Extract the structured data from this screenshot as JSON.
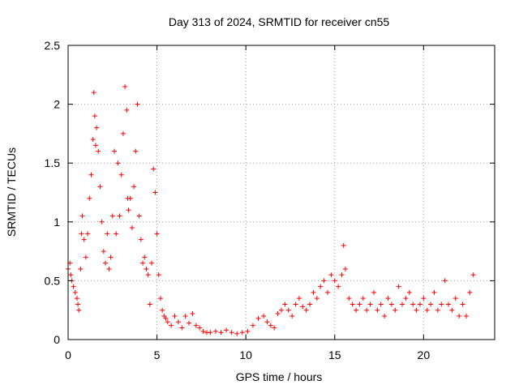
{
  "chart_data": {
    "type": "scatter",
    "title": "Day 313 of 2024, SRMTID for receiver cn55",
    "xlabel": "GPS time / hours",
    "ylabel": "SRMTID / TECUs",
    "xlim": [
      0,
      24
    ],
    "ylim": [
      0,
      2.5
    ],
    "xticks": [
      0,
      5,
      10,
      15,
      20
    ],
    "yticks": [
      0,
      0.5,
      1,
      1.5,
      2,
      2.5
    ],
    "xtick_labels": [
      "0",
      "5",
      "10",
      "15",
      "20"
    ],
    "ytick_labels": [
      "0",
      "0.5",
      "1",
      "1.5",
      "2",
      "2.5"
    ],
    "grid": true,
    "marker": "+",
    "series": [
      {
        "name": "SRMTID",
        "color": "#ff0000",
        "x": [
          0.0,
          0.1,
          0.15,
          0.2,
          0.3,
          0.4,
          0.5,
          0.55,
          0.6,
          0.7,
          0.75,
          0.8,
          0.9,
          1.0,
          1.1,
          1.2,
          1.3,
          1.4,
          1.45,
          1.5,
          1.55,
          1.6,
          1.7,
          1.8,
          1.9,
          2.0,
          2.1,
          2.2,
          2.3,
          2.4,
          2.5,
          2.6,
          2.7,
          2.8,
          2.9,
          3.0,
          3.1,
          3.2,
          3.3,
          3.35,
          3.4,
          3.5,
          3.6,
          3.7,
          3.8,
          3.9,
          4.0,
          4.1,
          4.2,
          4.3,
          4.4,
          4.5,
          4.6,
          4.7,
          4.8,
          4.9,
          5.0,
          5.1,
          5.2,
          5.3,
          5.4,
          5.5,
          5.6,
          5.8,
          6.0,
          6.2,
          6.4,
          6.6,
          6.8,
          7.0,
          7.2,
          7.4,
          7.6,
          7.8,
          8.0,
          8.3,
          8.6,
          8.9,
          9.2,
          9.5,
          9.8,
          10.1,
          10.4,
          10.7,
          11.0,
          11.2,
          11.4,
          11.6,
          11.8,
          12.0,
          12.2,
          12.4,
          12.6,
          12.8,
          13.0,
          13.2,
          13.4,
          13.6,
          13.8,
          14.0,
          14.2,
          14.4,
          14.6,
          14.8,
          15.0,
          15.2,
          15.4,
          15.5,
          15.6,
          15.8,
          16.0,
          16.2,
          16.4,
          16.6,
          16.8,
          17.0,
          17.2,
          17.4,
          17.6,
          17.8,
          18.0,
          18.2,
          18.4,
          18.6,
          18.8,
          19.0,
          19.2,
          19.4,
          19.6,
          19.8,
          20.0,
          20.2,
          20.4,
          20.6,
          20.8,
          21.0,
          21.2,
          21.4,
          21.6,
          21.8,
          22.0,
          22.2,
          22.4,
          22.6,
          22.8
        ],
        "y": [
          0.6,
          0.65,
          0.55,
          0.5,
          0.45,
          0.4,
          0.35,
          0.3,
          0.25,
          0.6,
          0.9,
          1.05,
          0.85,
          0.7,
          0.9,
          1.2,
          1.4,
          1.7,
          2.1,
          1.9,
          1.65,
          1.8,
          1.6,
          1.3,
          1.0,
          0.75,
          0.65,
          0.9,
          0.6,
          0.7,
          1.05,
          1.6,
          0.9,
          1.5,
          1.05,
          1.4,
          1.75,
          2.15,
          1.95,
          1.2,
          1.1,
          1.2,
          0.95,
          1.3,
          1.6,
          2.0,
          1.05,
          0.85,
          0.65,
          0.7,
          0.6,
          0.55,
          0.3,
          0.65,
          1.45,
          1.25,
          0.9,
          0.55,
          0.35,
          0.25,
          0.2,
          0.18,
          0.15,
          0.12,
          0.2,
          0.15,
          0.1,
          0.2,
          0.14,
          0.22,
          0.12,
          0.1,
          0.07,
          0.06,
          0.06,
          0.07,
          0.06,
          0.08,
          0.06,
          0.05,
          0.06,
          0.07,
          0.12,
          0.18,
          0.2,
          0.15,
          0.12,
          0.1,
          0.22,
          0.25,
          0.3,
          0.25,
          0.2,
          0.3,
          0.35,
          0.28,
          0.25,
          0.3,
          0.4,
          0.35,
          0.45,
          0.5,
          0.4,
          0.55,
          0.5,
          0.45,
          0.55,
          0.8,
          0.6,
          0.35,
          0.3,
          0.25,
          0.3,
          0.35,
          0.25,
          0.3,
          0.4,
          0.25,
          0.3,
          0.2,
          0.35,
          0.3,
          0.25,
          0.45,
          0.3,
          0.35,
          0.4,
          0.3,
          0.25,
          0.3,
          0.35,
          0.25,
          0.3,
          0.4,
          0.25,
          0.3,
          0.5,
          0.3,
          0.25,
          0.35,
          0.2,
          0.3,
          0.2,
          0.4,
          0.55
        ]
      }
    ]
  }
}
